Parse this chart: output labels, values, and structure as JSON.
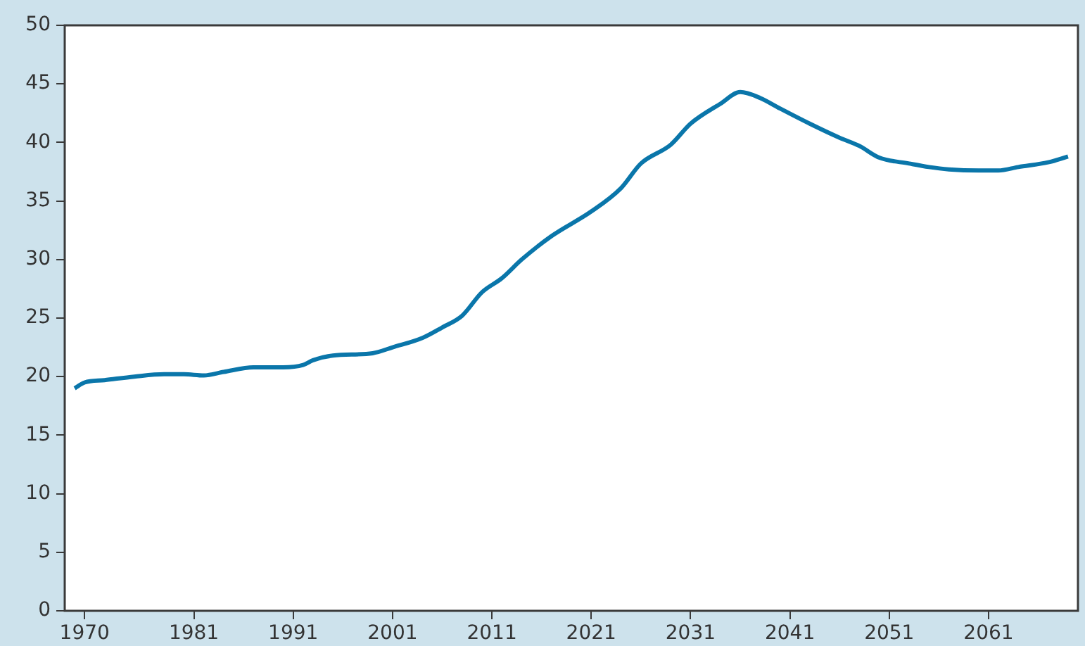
{
  "chart_data": {
    "type": "line",
    "x": [
      1969,
      1970,
      1972,
      1975,
      1978,
      1980,
      1982,
      1984,
      1987,
      1990,
      1992,
      1993,
      1995,
      1999,
      2001,
      2004,
      2006,
      2008,
      2010,
      2012,
      2014,
      2017,
      2021,
      2024,
      2026,
      2029,
      2031,
      2034,
      2036,
      2038,
      2040,
      2043,
      2046,
      2048,
      2050,
      2053,
      2055,
      2057,
      2060,
      2062,
      2064,
      2067,
      2069
    ],
    "series": [
      {
        "color": "#0a76aa",
        "values": [
          19.0,
          19.5,
          19.7,
          20.0,
          20.2,
          20.2,
          20.1,
          20.4,
          20.8,
          20.8,
          21.0,
          21.4,
          21.8,
          22.0,
          22.5,
          23.3,
          24.2,
          25.2,
          27.2,
          28.4,
          30.0,
          32.0,
          34.1,
          36.1,
          38.2,
          39.8,
          41.6,
          43.3,
          44.3,
          43.8,
          42.9,
          41.6,
          40.4,
          39.7,
          38.7,
          38.2,
          37.9,
          37.7,
          37.6,
          37.6,
          37.9,
          38.3,
          38.8
        ]
      }
    ],
    "xlim": [
      1968,
      2070
    ],
    "xticks": [
      1970,
      1981,
      1991,
      2001,
      2011,
      2021,
      2031,
      2041,
      2051,
      2061
    ],
    "ylim": [
      0,
      50
    ],
    "yticks": [
      0,
      5,
      10,
      15,
      20,
      25,
      30,
      35,
      40,
      45,
      50
    ],
    "grid": false,
    "legend": false,
    "marker": "none",
    "line_style": "solid"
  }
}
